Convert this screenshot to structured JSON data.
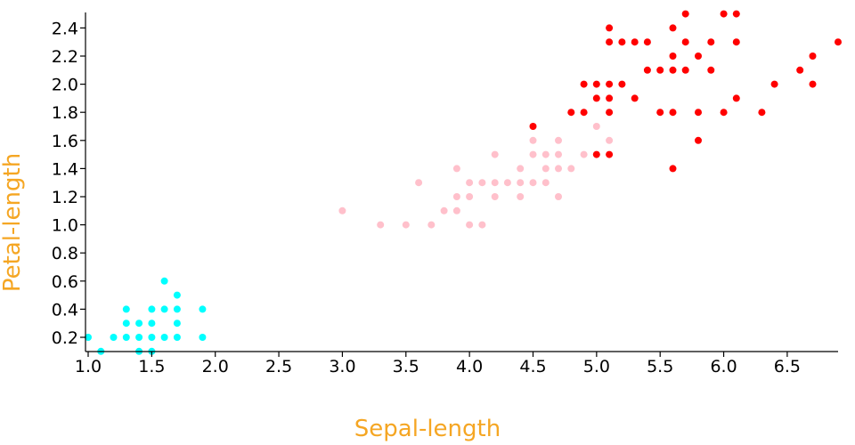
{
  "colors": {
    "axis_title": "#f5a623",
    "axis": "#000000"
  },
  "chart_data": {
    "type": "scatter",
    "title": "",
    "xlabel": "Sepal-length",
    "ylabel": "Petal-length",
    "xlim": [
      1.0,
      6.9
    ],
    "ylim": [
      0.1,
      2.5
    ],
    "grid": false,
    "x_ticks": [
      1.0,
      1.5,
      2.0,
      2.5,
      3.0,
      3.5,
      4.0,
      4.5,
      5.0,
      5.5,
      6.0,
      6.5
    ],
    "x_tick_labels": [
      "1.0",
      "1.5",
      "2.0",
      "2.5",
      "3.0",
      "3.5",
      "4.0",
      "4.5",
      "5.0",
      "5.5",
      "6.0",
      "6.5"
    ],
    "y_ticks": [
      0.2,
      0.4,
      0.6,
      0.8,
      1.0,
      1.2,
      1.4,
      1.6,
      1.8,
      2.0,
      2.2,
      2.4
    ],
    "y_tick_labels": [
      "0.2",
      "0.4",
      "0.6",
      "0.8",
      "1.0",
      "1.2",
      "1.4",
      "1.6",
      "1.8",
      "2.0",
      "2.2",
      "2.4"
    ],
    "series": [
      {
        "color": "#00ffff",
        "points": [
          [
            1.0,
            0.2
          ],
          [
            1.1,
            0.1
          ],
          [
            1.2,
            0.2
          ],
          [
            1.3,
            0.2
          ],
          [
            1.3,
            0.3
          ],
          [
            1.3,
            0.4
          ],
          [
            1.4,
            0.1
          ],
          [
            1.4,
            0.2
          ],
          [
            1.4,
            0.3
          ],
          [
            1.5,
            0.1
          ],
          [
            1.5,
            0.2
          ],
          [
            1.5,
            0.3
          ],
          [
            1.5,
            0.4
          ],
          [
            1.6,
            0.2
          ],
          [
            1.6,
            0.4
          ],
          [
            1.6,
            0.6
          ],
          [
            1.7,
            0.2
          ],
          [
            1.7,
            0.3
          ],
          [
            1.7,
            0.4
          ],
          [
            1.7,
            0.5
          ],
          [
            1.9,
            0.2
          ],
          [
            1.9,
            0.4
          ]
        ]
      },
      {
        "color": "#ffc0cb",
        "points": [
          [
            3.0,
            1.1
          ],
          [
            3.3,
            1.0
          ],
          [
            3.5,
            1.0
          ],
          [
            3.6,
            1.3
          ],
          [
            3.7,
            1.0
          ],
          [
            3.8,
            1.1
          ],
          [
            3.9,
            1.1
          ],
          [
            3.9,
            1.2
          ],
          [
            3.9,
            1.4
          ],
          [
            4.0,
            1.0
          ],
          [
            4.0,
            1.2
          ],
          [
            4.0,
            1.3
          ],
          [
            4.1,
            1.0
          ],
          [
            4.1,
            1.3
          ],
          [
            4.2,
            1.2
          ],
          [
            4.2,
            1.3
          ],
          [
            4.2,
            1.5
          ],
          [
            4.3,
            1.3
          ],
          [
            4.4,
            1.2
          ],
          [
            4.4,
            1.3
          ],
          [
            4.4,
            1.4
          ],
          [
            4.5,
            1.3
          ],
          [
            4.5,
            1.5
          ],
          [
            4.5,
            1.6
          ],
          [
            4.6,
            1.3
          ],
          [
            4.6,
            1.4
          ],
          [
            4.6,
            1.5
          ],
          [
            4.7,
            1.2
          ],
          [
            4.7,
            1.4
          ],
          [
            4.7,
            1.5
          ],
          [
            4.7,
            1.6
          ],
          [
            4.8,
            1.4
          ],
          [
            4.9,
            1.5
          ],
          [
            5.0,
            1.7
          ],
          [
            5.1,
            1.6
          ]
        ]
      },
      {
        "color": "#ff0000",
        "points": [
          [
            4.5,
            1.7
          ],
          [
            4.8,
            1.8
          ],
          [
            4.9,
            1.8
          ],
          [
            4.9,
            2.0
          ],
          [
            5.0,
            1.5
          ],
          [
            5.0,
            1.9
          ],
          [
            5.0,
            2.0
          ],
          [
            5.1,
            1.5
          ],
          [
            5.1,
            1.8
          ],
          [
            5.1,
            1.9
          ],
          [
            5.1,
            2.0
          ],
          [
            5.1,
            2.3
          ],
          [
            5.1,
            2.4
          ],
          [
            5.2,
            2.0
          ],
          [
            5.2,
            2.3
          ],
          [
            5.3,
            1.9
          ],
          [
            5.3,
            2.3
          ],
          [
            5.4,
            2.1
          ],
          [
            5.4,
            2.3
          ],
          [
            5.5,
            1.8
          ],
          [
            5.5,
            2.1
          ],
          [
            5.6,
            1.4
          ],
          [
            5.6,
            1.8
          ],
          [
            5.6,
            2.1
          ],
          [
            5.6,
            2.2
          ],
          [
            5.6,
            2.4
          ],
          [
            5.7,
            2.1
          ],
          [
            5.7,
            2.3
          ],
          [
            5.7,
            2.5
          ],
          [
            5.8,
            1.6
          ],
          [
            5.8,
            1.8
          ],
          [
            5.8,
            2.2
          ],
          [
            5.9,
            2.1
          ],
          [
            5.9,
            2.3
          ],
          [
            6.0,
            1.8
          ],
          [
            6.0,
            2.5
          ],
          [
            6.1,
            1.9
          ],
          [
            6.1,
            2.3
          ],
          [
            6.1,
            2.5
          ],
          [
            6.3,
            1.8
          ],
          [
            6.4,
            2.0
          ],
          [
            6.6,
            2.1
          ],
          [
            6.7,
            2.0
          ],
          [
            6.7,
            2.2
          ],
          [
            6.9,
            2.3
          ]
        ]
      }
    ]
  }
}
